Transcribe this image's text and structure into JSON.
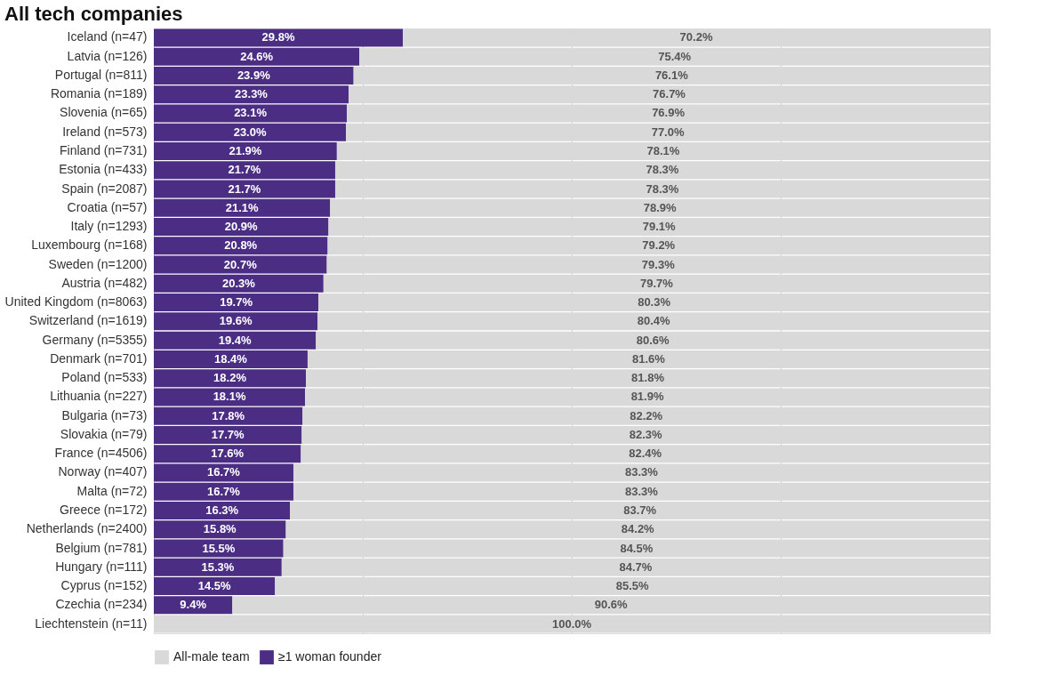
{
  "chart_data": {
    "type": "bar",
    "title": "All tech companies",
    "orientation": "horizontal",
    "stacked": true,
    "categories": [
      "Iceland (n=47)",
      "Latvia (n=126)",
      "Portugal (n=811)",
      "Romania (n=189)",
      "Slovenia (n=65)",
      "Ireland (n=573)",
      "Finland (n=731)",
      "Estonia (n=433)",
      "Spain (n=2087)",
      "Croatia (n=57)",
      "Italy (n=1293)",
      "Luxembourg (n=168)",
      "Sweden (n=1200)",
      "Austria (n=482)",
      "United Kingdom (n=8063)",
      "Switzerland (n=1619)",
      "Germany (n=5355)",
      "Denmark (n=701)",
      "Poland (n=533)",
      "Lithuania (n=227)",
      "Bulgaria (n=73)",
      "Slovakia (n=79)",
      "France (n=4506)",
      "Norway (n=407)",
      "Malta (n=72)",
      "Greece (n=172)",
      "Netherlands (n=2400)",
      "Belgium (n=781)",
      "Hungary (n=111)",
      "Cyprus (n=152)",
      "Czechia (n=234)",
      "Liechtenstein (n=11)"
    ],
    "series": [
      {
        "name": "≥1 woman founder",
        "color": "#4b2e83",
        "values": [
          29.8,
          24.6,
          23.9,
          23.3,
          23.1,
          23.0,
          21.9,
          21.7,
          21.7,
          21.1,
          20.9,
          20.8,
          20.7,
          20.3,
          19.7,
          19.6,
          19.4,
          18.4,
          18.2,
          18.1,
          17.8,
          17.7,
          17.6,
          16.7,
          16.7,
          16.3,
          15.8,
          15.5,
          15.3,
          14.5,
          9.4,
          0
        ],
        "value_labels": [
          "29.8%",
          "24.6%",
          "23.9%",
          "23.3%",
          "23.1%",
          "23.0%",
          "21.9%",
          "21.7%",
          "21.7%",
          "21.1%",
          "20.9%",
          "20.8%",
          "20.7%",
          "20.3%",
          "19.7%",
          "19.6%",
          "19.4%",
          "18.4%",
          "18.2%",
          "18.1%",
          "17.8%",
          "17.7%",
          "17.6%",
          "16.7%",
          "16.7%",
          "16.3%",
          "15.8%",
          "15.5%",
          "15.3%",
          "14.5%",
          "9.4%",
          null
        ]
      },
      {
        "name": "All-male team",
        "color": "#d9d9d9",
        "values": [
          70.2,
          75.4,
          76.1,
          76.7,
          76.9,
          77.0,
          78.1,
          78.3,
          78.3,
          78.9,
          79.1,
          79.2,
          79.3,
          79.7,
          80.3,
          80.4,
          80.6,
          81.6,
          81.8,
          81.9,
          82.2,
          82.3,
          82.4,
          83.3,
          83.3,
          83.7,
          84.2,
          84.5,
          84.7,
          85.5,
          90.6,
          100.0
        ],
        "value_labels": [
          "70.2%",
          "75.4%",
          "76.1%",
          "76.7%",
          "76.9%",
          "77.0%",
          "78.1%",
          "78.3%",
          "78.3%",
          "78.9%",
          "79.1%",
          "79.2%",
          "79.3%",
          "79.7%",
          "80.3%",
          "80.4%",
          "80.6%",
          "81.6%",
          "81.8%",
          "81.9%",
          "82.2%",
          "82.3%",
          "82.4%",
          "83.3%",
          "83.3%",
          "83.7%",
          "84.2%",
          "84.5%",
          "84.7%",
          "85.5%",
          "90.6%",
          "100.0%"
        ]
      }
    ],
    "xlim": [
      0,
      100
    ],
    "xticks": [
      {
        "value": 0,
        "label": null
      },
      {
        "value": 25,
        "label": null
      },
      {
        "value": 50,
        "label": null
      },
      {
        "value": 75,
        "label": null
      },
      {
        "value": 100,
        "label": null
      }
    ],
    "tick_labels": "y",
    "grid": "x",
    "legend": "bottom"
  }
}
